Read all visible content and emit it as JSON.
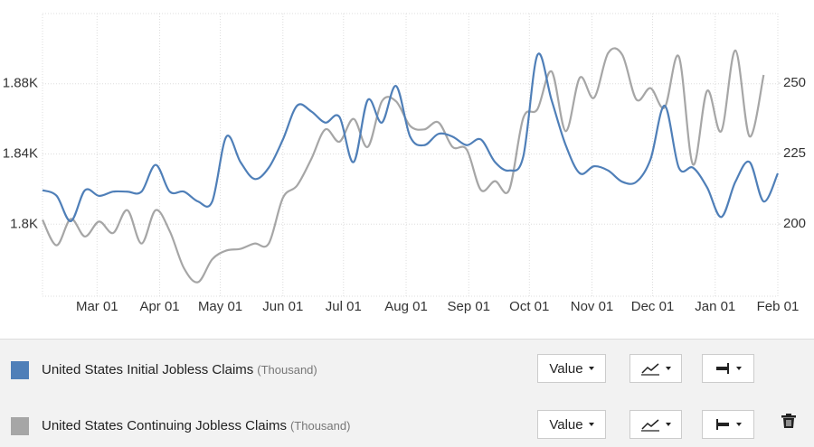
{
  "chart_data": {
    "type": "line",
    "x": [
      "Feb 02",
      "Feb 09",
      "Feb 16",
      "Feb 23",
      "Mar 02",
      "Mar 09",
      "Mar 16",
      "Mar 23",
      "Mar 30",
      "Apr 06",
      "Apr 13",
      "Apr 20",
      "Apr 27",
      "May 04",
      "May 11",
      "May 18",
      "May 25",
      "Jun 01",
      "Jun 08",
      "Jun 15",
      "Jun 22",
      "Jun 29",
      "Jul 06",
      "Jul 13",
      "Jul 20",
      "Jul 27",
      "Aug 03",
      "Aug 10",
      "Aug 17",
      "Aug 24",
      "Aug 31",
      "Sep 07",
      "Sep 14",
      "Sep 21",
      "Sep 28",
      "Oct 05",
      "Oct 12",
      "Oct 19",
      "Oct 26",
      "Nov 02",
      "Nov 09",
      "Nov 16",
      "Nov 23",
      "Nov 30",
      "Dec 07",
      "Dec 14",
      "Dec 21",
      "Dec 28",
      "Jan 04",
      "Jan 11",
      "Jan 18",
      "Jan 25",
      "Feb 01"
    ],
    "xticks": [
      "Mar 01",
      "Apr 01",
      "May 01",
      "Jun 01",
      "Jul 01",
      "Aug 01",
      "Sep 01",
      "Oct 01",
      "Nov 01",
      "Dec 01",
      "Jan 01",
      "Feb 01"
    ],
    "series": [
      {
        "name": "United States Initial Jobless Claims",
        "unit": "(Thousand)",
        "color": "#4f7fb8",
        "axis": "y2",
        "values": [
          212,
          210,
          201,
          212,
          210,
          211.5,
          211.5,
          211.5,
          221,
          211.5,
          211.5,
          208,
          208,
          231,
          222,
          216,
          220,
          230,
          242,
          240,
          236,
          238,
          222,
          244,
          236,
          249,
          231,
          228,
          232,
          231,
          228,
          230,
          222,
          219,
          224,
          260,
          244,
          228,
          218,
          220.5,
          219,
          215,
          215,
          223,
          242,
          220,
          220,
          213,
          202.5,
          215,
          222,
          208,
          218
        ]
      },
      {
        "name": "United States Continuing Jobless Claims",
        "unit": "(Thousand)",
        "color": "#a6a6a6",
        "axis": "y",
        "values": [
          1802.5,
          1788,
          1803,
          1793,
          1801.5,
          1795,
          1808,
          1789,
          1808,
          1796,
          1775,
          1767,
          1780,
          1785,
          1786,
          1789,
          1789,
          1815,
          1822,
          1837,
          1854,
          1847,
          1860,
          1844,
          1870,
          1870,
          1856,
          1854,
          1858,
          1844,
          1842.5,
          1819.5,
          1824.5,
          1819.5,
          1860.5,
          1865.5,
          1887,
          1853,
          1883.5,
          1872,
          1897.5,
          1896.5,
          1871,
          1877.5,
          1866.5,
          1895.5,
          1834,
          1876,
          1853,
          1899,
          1850,
          1885,
          null
        ]
      }
    ],
    "ylim": [
      1759,
      1920
    ],
    "yticks": [
      {
        "value": 1800,
        "label": "1.8K"
      },
      {
        "value": 1840,
        "label": "1.84K"
      },
      {
        "value": 1880,
        "label": "1.88K"
      }
    ],
    "y2lim": [
      174.4,
      274.7
    ],
    "y2ticks": [
      200,
      225,
      250
    ],
    "grid": true,
    "controls": {
      "value_button": "Value"
    }
  }
}
